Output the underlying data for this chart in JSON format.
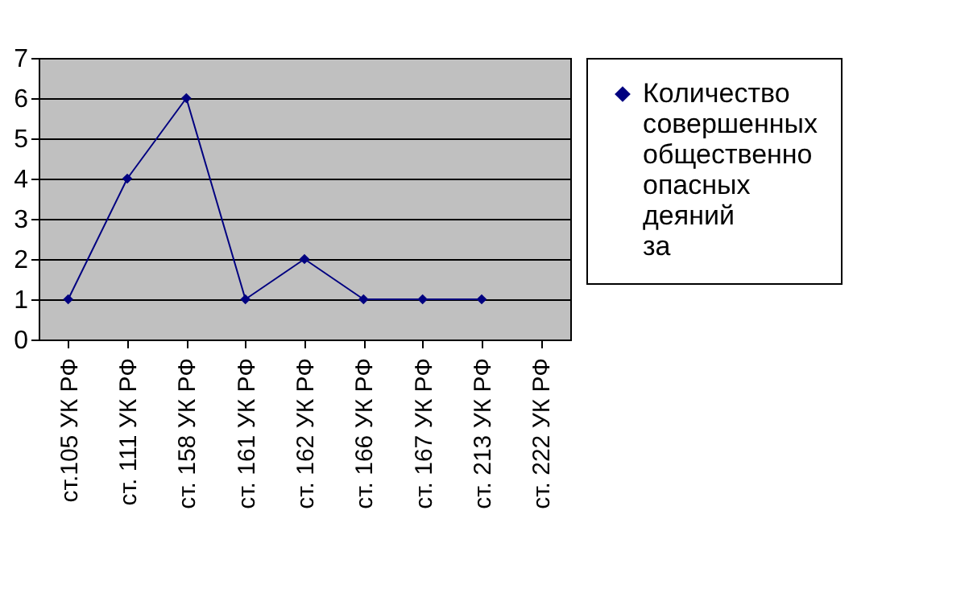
{
  "chart_data": {
    "type": "line",
    "categories": [
      "ст.105 УК РФ",
      "ст. 111 УК РФ",
      "ст. 158 УК РФ",
      "ст. 161 УК РФ",
      "ст. 162 УК РФ",
      "ст. 166 УК РФ",
      "ст. 167 УК РФ",
      "ст. 213 УК РФ",
      "ст. 222 УК РФ"
    ],
    "series": [
      {
        "name": "Количество совершенных общественно опасных деяний за",
        "color": "#000080",
        "values": [
          1,
          4,
          6,
          1,
          2,
          1,
          1,
          1,
          null
        ]
      }
    ],
    "ylim": [
      0,
      7
    ],
    "yticks": [
      0,
      1,
      2,
      3,
      4,
      5,
      6,
      7
    ],
    "grid": "y",
    "legend": "right",
    "marker": "diamond",
    "line_style": "solid"
  }
}
